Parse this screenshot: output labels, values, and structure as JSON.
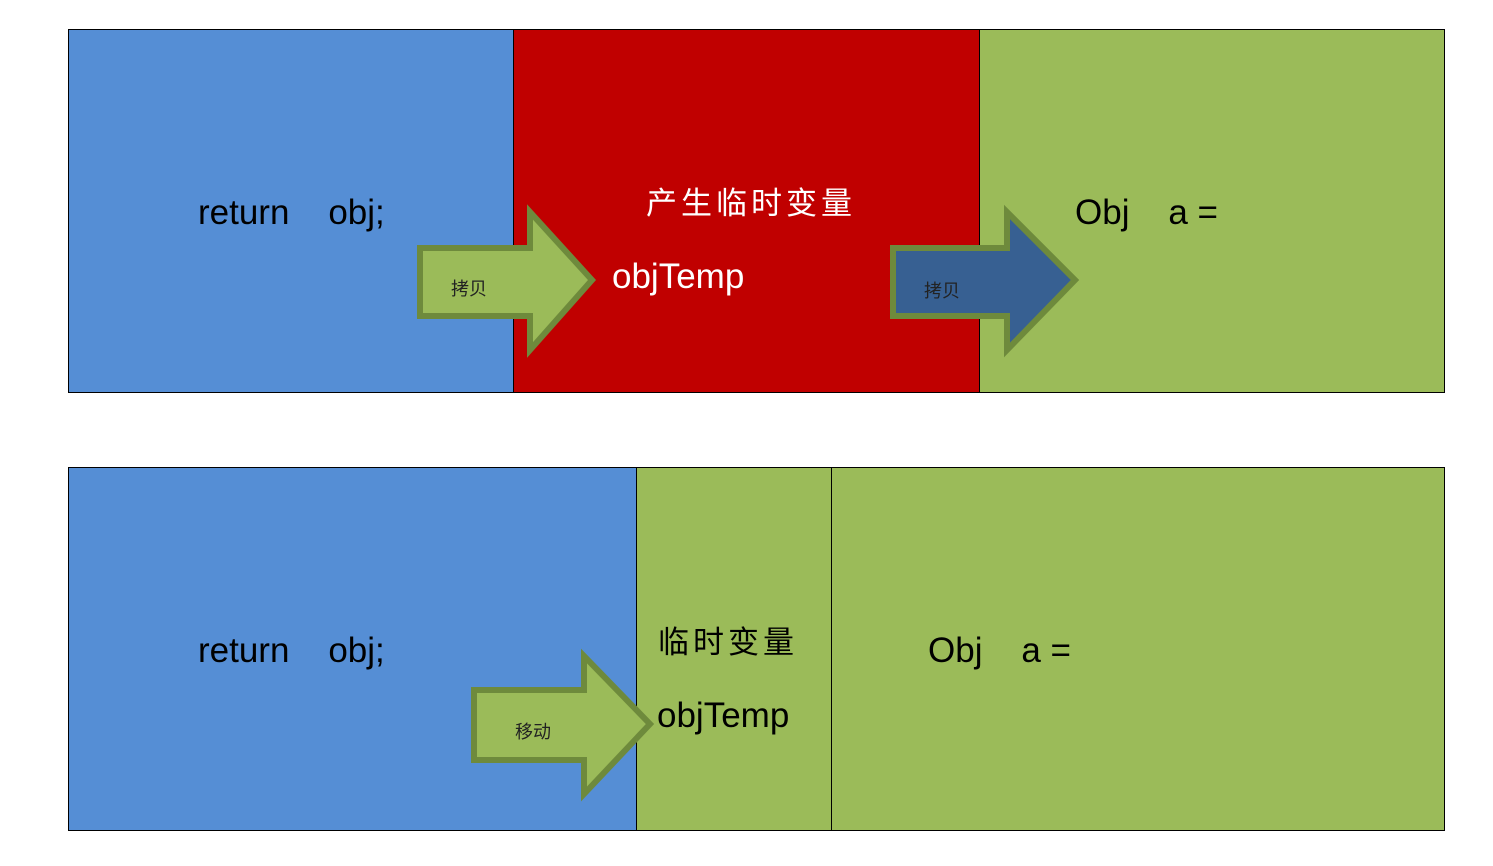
{
  "colors": {
    "blue": "#558ed5",
    "red": "#c00000",
    "green": "#9bbb59",
    "arrow_green_stroke": "#6e8a3c",
    "arrow_blue_fill": "#376092"
  },
  "top": {
    "source_text": "return    obj;",
    "temp_caption": "产生临时变量",
    "temp_name": "objTemp",
    "target_text": "Obj    a =",
    "arrow1_label": "拷贝",
    "arrow2_label": "拷贝"
  },
  "bottom": {
    "source_text": "return    obj;",
    "temp_caption": "临时变量",
    "temp_name": "objTemp",
    "target_text": "Obj    a =",
    "arrow_label": "移动"
  }
}
